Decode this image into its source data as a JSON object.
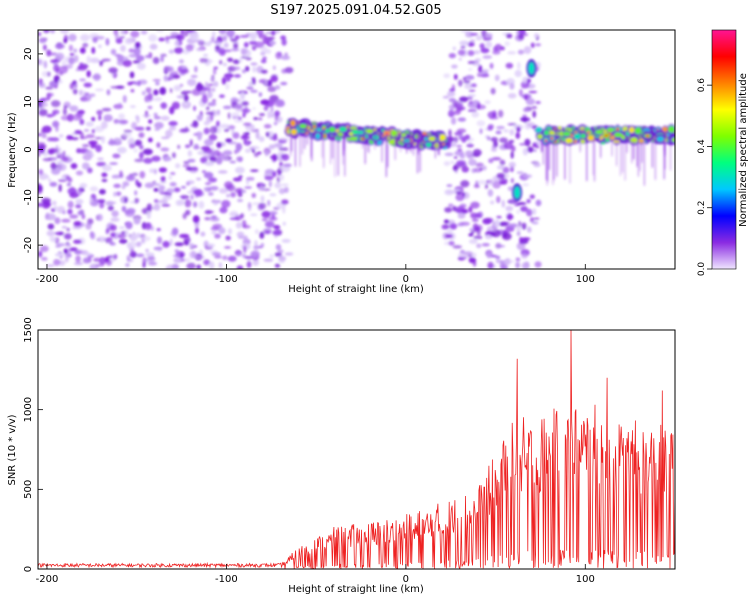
{
  "figure": {
    "title": "S197.2025.091.04.52.G05"
  },
  "chart_data": [
    {
      "type": "heatmap",
      "title": "S197.2025.091.04.52.G05",
      "xlabel": "Height of straight line (km)",
      "ylabel": "Frequency (Hz)",
      "xlim": [
        -205,
        150
      ],
      "ylim": [
        -25,
        25
      ],
      "x_ticks": [
        -200,
        -100,
        0,
        100
      ],
      "y_ticks": [
        20,
        10,
        0,
        -10,
        -20
      ],
      "colorbar": {
        "label": "Normalized spectral amplitude",
        "range": [
          0,
          0.78
        ],
        "ticks": [
          0.0,
          0.2,
          0.4,
          0.6
        ],
        "colors": [
          "#f0e6ff",
          "#8a2be2",
          "#0000ff",
          "#00c8ff",
          "#00ff7f",
          "#7fff00",
          "#ffff00",
          "#ff8000",
          "#ff0000",
          "#ff1493"
        ]
      },
      "noise_regions": [
        [
          -205,
          -65
        ],
        [
          22,
          60
        ],
        [
          62,
          74
        ]
      ],
      "signal_bands": [
        {
          "x_start": -65,
          "x_end": 22,
          "freq_start": 4.5,
          "freq_end": 1.5,
          "peak_amplitude": 0.72
        },
        {
          "x_start": 74,
          "x_end": 150,
          "freq_start": 3.0,
          "freq_end": 3.0,
          "peak_amplitude": 0.7
        }
      ],
      "blobs": [
        {
          "x": 62,
          "freq": -9,
          "amplitude": 0.3
        },
        {
          "x": 70,
          "freq": 17,
          "amplitude": 0.3
        }
      ]
    },
    {
      "type": "line",
      "xlabel": "Height of straight line (km)",
      "ylabel": "SNR (10 * v/v)",
      "xlim": [
        -205,
        150
      ],
      "ylim": [
        0,
        1500
      ],
      "x_ticks": [
        -200,
        -100,
        0,
        100
      ],
      "y_ticks": [
        0,
        500,
        1000,
        1500
      ],
      "color": "#ee2222",
      "envelope": {
        "x": [
          -205,
          -70,
          -60,
          -40,
          -20,
          0,
          20,
          40,
          60,
          80,
          100,
          120,
          140,
          150
        ],
        "y": [
          25,
          25,
          120,
          230,
          260,
          300,
          370,
          450,
          820,
          870,
          930,
          820,
          800,
          760
        ]
      },
      "peaks": [
        {
          "x": 62,
          "y": 1320
        },
        {
          "x": 92,
          "y": 1500
        },
        {
          "x": 112,
          "y": 1200
        },
        {
          "x": 143,
          "y": 1120
        }
      ]
    }
  ]
}
